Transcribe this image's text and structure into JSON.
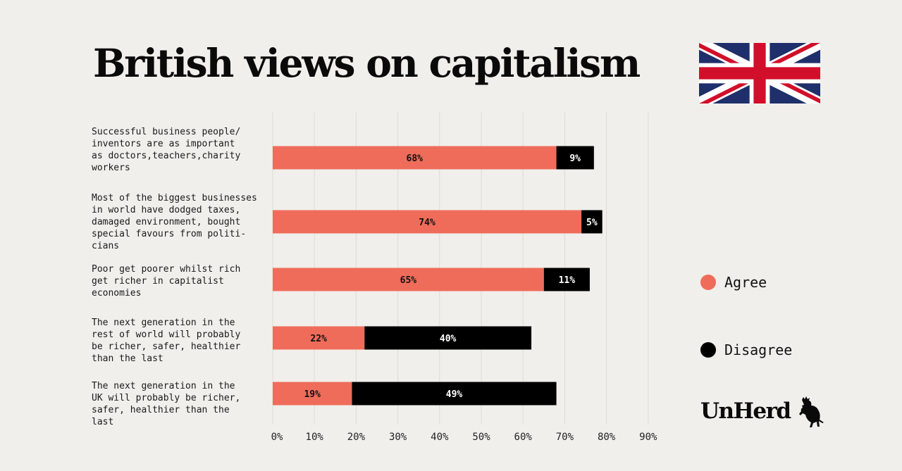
{
  "header": {
    "title": "British views on capitalism",
    "flag_icon": "uk-flag-icon"
  },
  "colors": {
    "background": "#f0efeb",
    "agree": "#ef6c5a",
    "disagree": "#000000",
    "flag_blue": "#1f2f6b",
    "flag_red": "#d10f2a",
    "flag_white": "#ffffff",
    "grid": "#dddbd6"
  },
  "chart_data": {
    "type": "bar",
    "orientation": "horizontal",
    "stacked": true,
    "title": "British views on capitalism",
    "xlabel": "",
    "ylabel": "",
    "xlim": [
      0,
      90
    ],
    "x_ticks": [
      "0%",
      "10%",
      "20%",
      "30%",
      "40%",
      "50%",
      "60%",
      "70%",
      "80%",
      "90%"
    ],
    "x_tick_values": [
      0,
      10,
      20,
      30,
      40,
      50,
      60,
      70,
      80,
      90
    ],
    "grid": "vertical",
    "legend_position": "right",
    "categories": [
      "Successful business people/\ninventors are as important\nas doctors,teachers,charity\nworkers",
      "Most of the biggest businesses\nin world have dodged taxes,\ndamaged environment, bought\nspecial favours from politi-\ncians",
      "Poor get poorer whilst rich\nget richer in capitalist\neconomies",
      "The next generation in the\nrest of world will probably\nbe richer, safer, healthier\nthan the last",
      "The next generation in the\nUK will probably be richer,\nsafer, healthier than the\nlast"
    ],
    "series": [
      {
        "name": "Agree",
        "values": [
          68,
          74,
          65,
          22,
          19
        ],
        "labels": [
          "68%",
          "74%",
          "65%",
          "22%",
          "19%"
        ]
      },
      {
        "name": "Disagree",
        "values": [
          9,
          5,
          11,
          40,
          49
        ],
        "labels": [
          "9%",
          "5%",
          "11%",
          "40%",
          "49%"
        ]
      }
    ]
  },
  "legend": {
    "items": [
      {
        "label": "Agree",
        "icon": "agree-dot-icon"
      },
      {
        "label": "Disagree",
        "icon": "disagree-dot-icon"
      }
    ]
  },
  "brand": {
    "logo_text": "UnHerd",
    "logo_icon": "rearing-cow-icon"
  }
}
